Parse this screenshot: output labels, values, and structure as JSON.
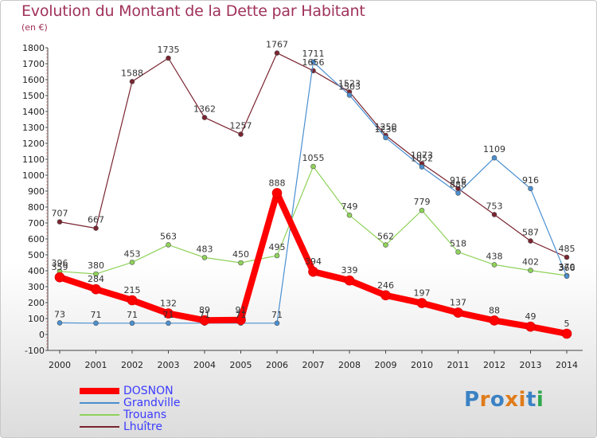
{
  "title": "Evolution du Montant de la Dette par Habitant",
  "subtitle": "(en €)",
  "logo": "Proxiti",
  "chart_data": {
    "type": "line",
    "x": [
      "2000",
      "2001",
      "2002",
      "2003",
      "2004",
      "2005",
      "2006",
      "2007",
      "2008",
      "2009",
      "2010",
      "2011",
      "2012",
      "2013",
      "2014"
    ],
    "ylim": [
      -100,
      1800
    ],
    "yticks": [
      -100,
      0,
      100,
      200,
      300,
      400,
      500,
      600,
      700,
      800,
      900,
      1000,
      1100,
      1200,
      1300,
      1400,
      1500,
      1600,
      1700,
      1800
    ],
    "grid": false,
    "legend": "bottom-left",
    "series": [
      {
        "name": "Lhuître",
        "color": "#7a2430",
        "width": 1.2,
        "values": [
          707,
          667,
          1588,
          1735,
          1362,
          1257,
          1767,
          1656,
          1523,
          1250,
          1073,
          916,
          753,
          587,
          485
        ]
      },
      {
        "name": "Trouans",
        "color": "#8fd25a",
        "width": 1.2,
        "values": [
          396,
          380,
          453,
          563,
          483,
          450,
          495,
          1055,
          749,
          562,
          779,
          518,
          438,
          402,
          370
        ]
      },
      {
        "name": "Grandville",
        "color": "#4a8fd0",
        "width": 1.2,
        "values": [
          73,
          71,
          71,
          71,
          71,
          71,
          71,
          1711,
          1503,
          1236,
          1052,
          888,
          1109,
          916,
          366
        ]
      },
      {
        "name": "DOSNON",
        "color": "#ff0000",
        "width": 8,
        "values": [
          359,
          284,
          215,
          132,
          89,
          91,
          888,
          394,
          339,
          246,
          197,
          137,
          88,
          49,
          5
        ]
      }
    ],
    "legend_order": [
      "DOSNON",
      "Grandville",
      "Trouans",
      "Lhuître"
    ]
  }
}
